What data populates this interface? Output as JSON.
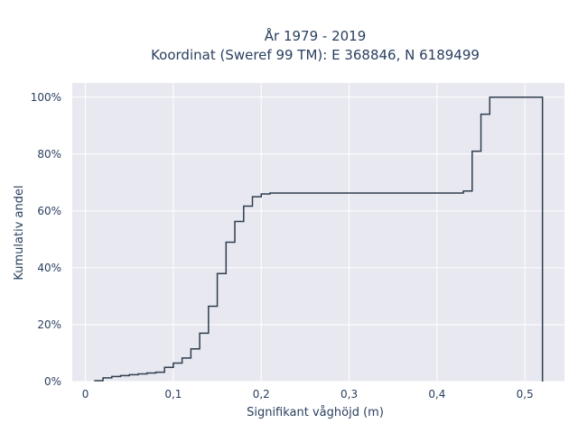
{
  "chart_data": {
    "type": "line",
    "line_shape": "step",
    "title_lines": [
      "År 1979 - 2019",
      "Koordinat (Sweref 99 TM): E 368846, N 6189499"
    ],
    "xlabel": "Signifikant våghöjd (m)",
    "ylabel": "Kumulativ andel",
    "xlim": [
      -0.015,
      0.545
    ],
    "ylim": [
      0,
      1.05
    ],
    "x_ticks": [
      0,
      0.1,
      0.2,
      0.3,
      0.4,
      0.5
    ],
    "x_tick_labels": [
      "0",
      "0,1",
      "0,2",
      "0,3",
      "0,4",
      "0,5"
    ],
    "y_ticks": [
      0,
      0.2,
      0.4,
      0.6,
      0.8,
      1.0
    ],
    "y_tick_labels": [
      "0%",
      "20%",
      "40%",
      "60%",
      "80%",
      "100%"
    ],
    "grid": true,
    "background_color": "#e8e8f0",
    "gridline_color": "#ffffff",
    "line_color": "#2f3e4e",
    "series": [
      {
        "x": [
          0.01,
          0.02,
          0.03,
          0.04,
          0.05,
          0.06,
          0.07,
          0.08,
          0.09,
          0.1,
          0.11,
          0.12,
          0.13,
          0.14,
          0.15,
          0.16,
          0.17,
          0.18,
          0.19,
          0.2,
          0.21,
          0.43,
          0.44,
          0.45,
          0.46,
          0.52,
          0.52
        ],
        "y": [
          0.003,
          0.013,
          0.018,
          0.021,
          0.024,
          0.027,
          0.03,
          0.033,
          0.05,
          0.065,
          0.083,
          0.115,
          0.17,
          0.265,
          0.38,
          0.49,
          0.563,
          0.617,
          0.65,
          0.66,
          0.663,
          0.67,
          0.81,
          0.94,
          1.0,
          1.0,
          0.0
        ]
      }
    ]
  }
}
